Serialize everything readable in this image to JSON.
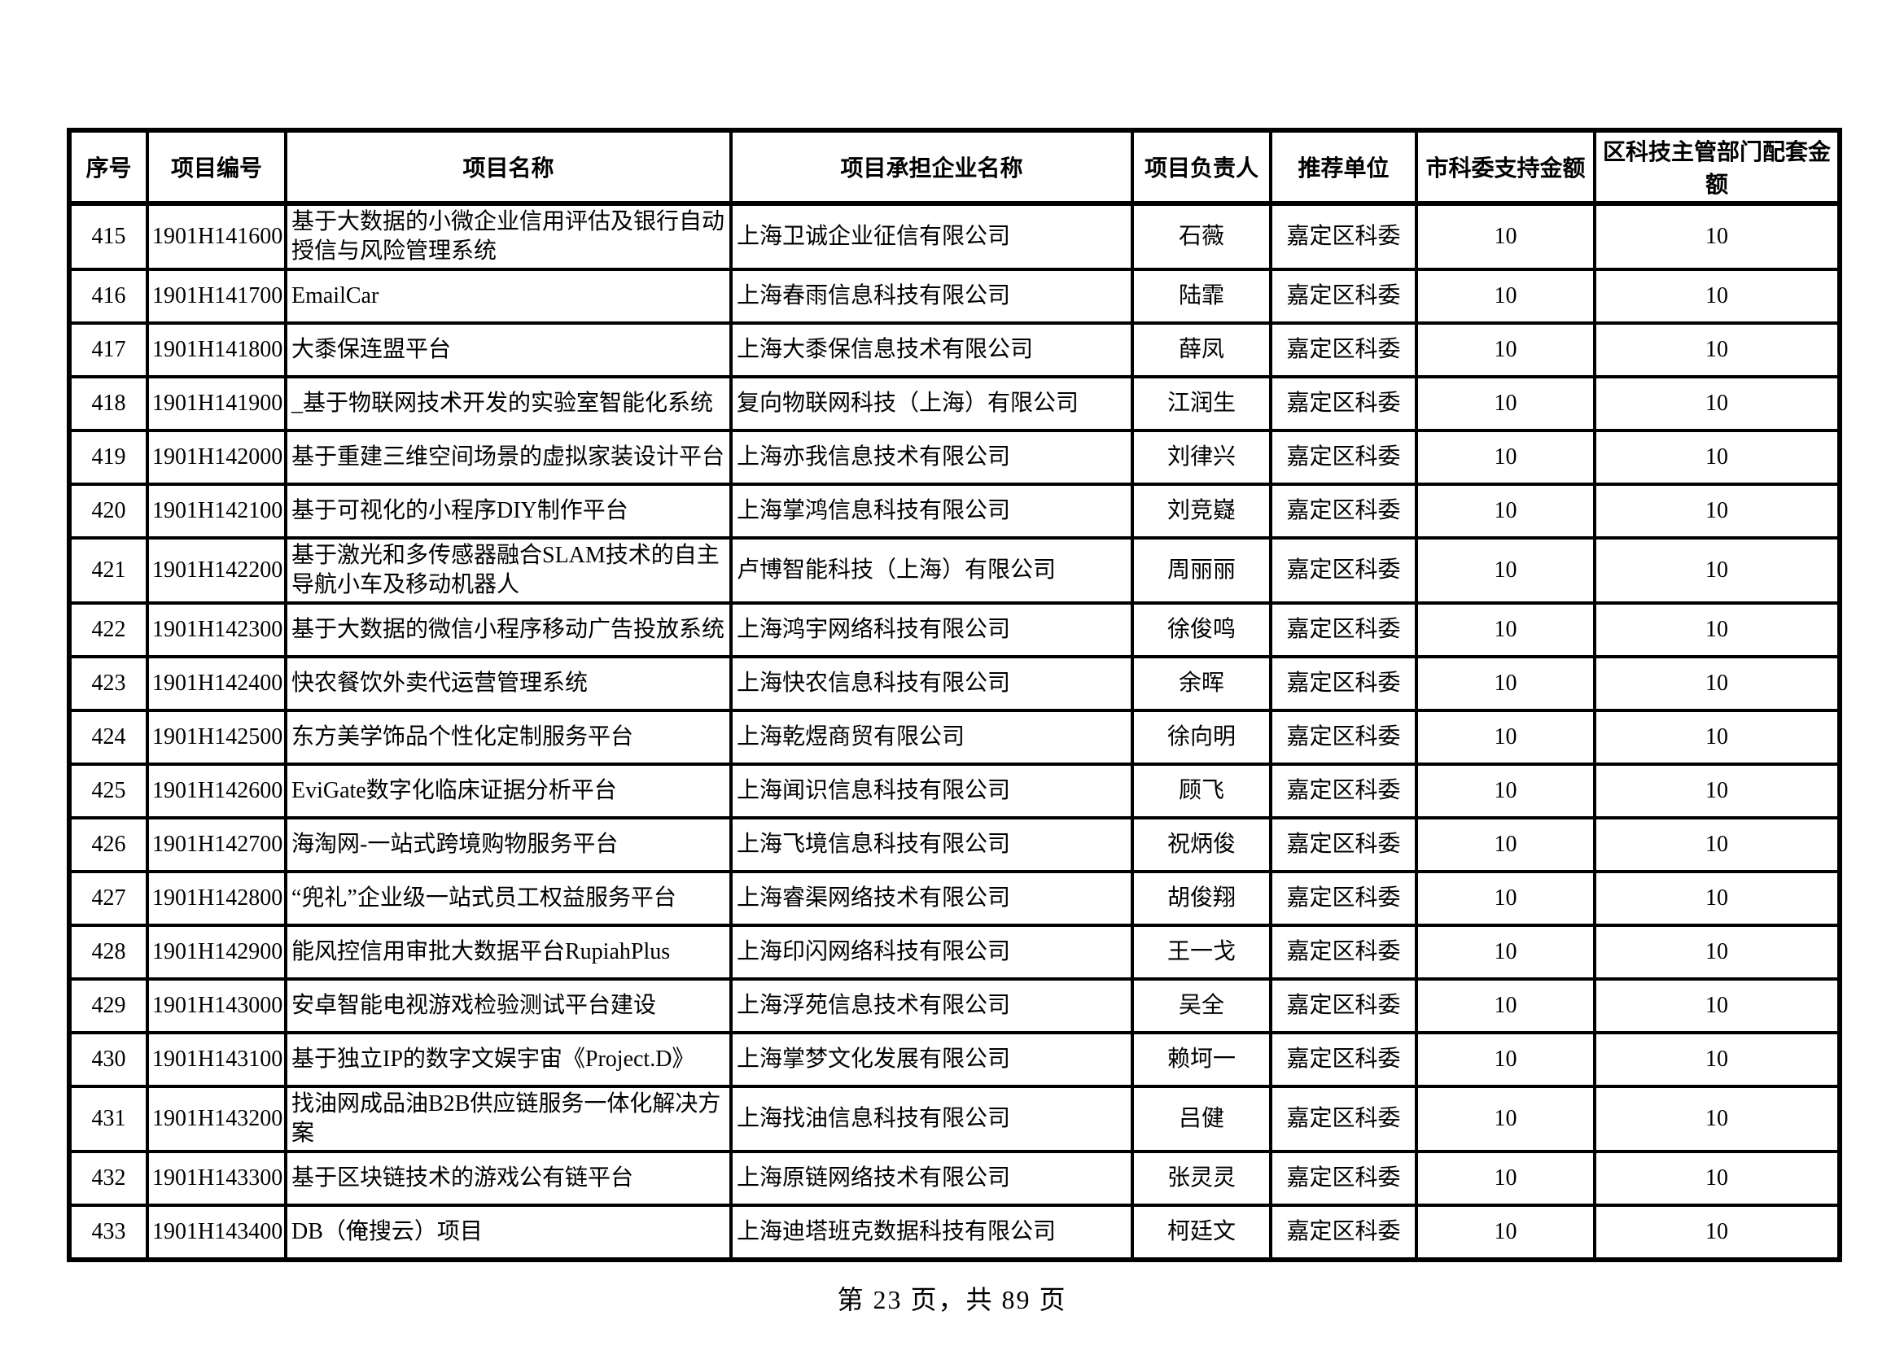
{
  "page": {
    "footer": "第 23 页，共 89 页"
  },
  "table": {
    "headers": [
      "序号",
      "项目编号",
      "项目名称",
      "项目承担企业名称",
      "项目负责人",
      "推荐单位",
      "市科委支持金额",
      "区科技主管部门配套金额"
    ],
    "rows": [
      [
        "415",
        "1901H141600",
        "基于大数据的小微企业信用评估及银行自动授信与风险管理系统",
        "上海卫诚企业征信有限公司",
        "石薇",
        "嘉定区科委",
        "10",
        "10"
      ],
      [
        "416",
        "1901H141700",
        "EmailCar",
        "上海春雨信息科技有限公司",
        "陆霏",
        "嘉定区科委",
        "10",
        "10"
      ],
      [
        "417",
        "1901H141800",
        "大黍保连盟平台",
        "上海大黍保信息技术有限公司",
        "薛凤",
        "嘉定区科委",
        "10",
        "10"
      ],
      [
        "418",
        "1901H141900",
        "_基于物联网技术开发的实验室智能化系统",
        "复向物联网科技（上海）有限公司",
        "江润生",
        "嘉定区科委",
        "10",
        "10"
      ],
      [
        "419",
        "1901H142000",
        "基于重建三维空间场景的虚拟家装设计平台",
        "上海亦我信息技术有限公司",
        "刘律兴",
        "嘉定区科委",
        "10",
        "10"
      ],
      [
        "420",
        "1901H142100",
        "基于可视化的小程序DIY制作平台",
        "上海掌鸿信息科技有限公司",
        "刘竞嶷",
        "嘉定区科委",
        "10",
        "10"
      ],
      [
        "421",
        "1901H142200",
        "基于激光和多传感器融合SLAM技术的自主导航小车及移动机器人",
        "卢博智能科技（上海）有限公司",
        "周丽丽",
        "嘉定区科委",
        "10",
        "10"
      ],
      [
        "422",
        "1901H142300",
        "基于大数据的微信小程序移动广告投放系统",
        "上海鸿宇网络科技有限公司",
        "徐俊鸣",
        "嘉定区科委",
        "10",
        "10"
      ],
      [
        "423",
        "1901H142400",
        "快农餐饮外卖代运营管理系统",
        "上海快农信息科技有限公司",
        "余晖",
        "嘉定区科委",
        "10",
        "10"
      ],
      [
        "424",
        "1901H142500",
        "东方美学饰品个性化定制服务平台",
        "上海乾煜商贸有限公司",
        "徐向明",
        "嘉定区科委",
        "10",
        "10"
      ],
      [
        "425",
        "1901H142600",
        "EviGate数字化临床证据分析平台",
        "上海闻识信息科技有限公司",
        "顾飞",
        "嘉定区科委",
        "10",
        "10"
      ],
      [
        "426",
        "1901H142700",
        "海淘网-一站式跨境购物服务平台",
        "上海飞境信息科技有限公司",
        "祝炳俊",
        "嘉定区科委",
        "10",
        "10"
      ],
      [
        "427",
        "1901H142800",
        "“兜礼”企业级一站式员工权益服务平台",
        "上海睿渠网络技术有限公司",
        "胡俊翔",
        "嘉定区科委",
        "10",
        "10"
      ],
      [
        "428",
        "1901H142900",
        "能风控信用审批大数据平台RupiahPlus",
        "上海印闪网络科技有限公司",
        "王一戈",
        "嘉定区科委",
        "10",
        "10"
      ],
      [
        "429",
        "1901H143000",
        "安卓智能电视游戏检验测试平台建设",
        "上海浮苑信息技术有限公司",
        "吴全",
        "嘉定区科委",
        "10",
        "10"
      ],
      [
        "430",
        "1901H143100",
        "基于独立IP的数字文娱宇宙《Project.D》",
        "上海掌梦文化发展有限公司",
        "赖坷一",
        "嘉定区科委",
        "10",
        "10"
      ],
      [
        "431",
        "1901H143200",
        "找油网成品油B2B供应链服务一体化解决方案",
        "上海找油信息科技有限公司",
        "吕健",
        "嘉定区科委",
        "10",
        "10"
      ],
      [
        "432",
        "1901H143300",
        "基于区块链技术的游戏公有链平台",
        "上海原链网络技术有限公司",
        "张灵灵",
        "嘉定区科委",
        "10",
        "10"
      ],
      [
        "433",
        "1901H143400",
        "DB（俺搜云）项目",
        "上海迪塔班克数据科技有限公司",
        "柯廷文",
        "嘉定区科委",
        "10",
        "10"
      ]
    ]
  }
}
